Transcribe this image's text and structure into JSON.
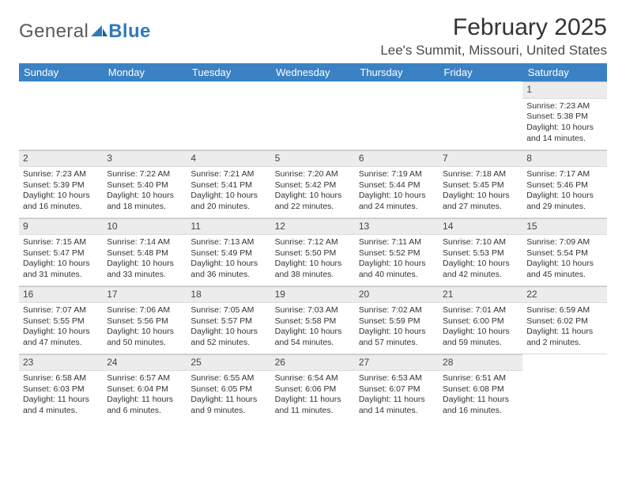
{
  "logo": {
    "word1": "General",
    "word2": "Blue"
  },
  "title": "February 2025",
  "location": "Lee's Summit, Missouri, United States",
  "dayHeaders": [
    "Sunday",
    "Monday",
    "Tuesday",
    "Wednesday",
    "Thursday",
    "Friday",
    "Saturday"
  ],
  "colors": {
    "headerBg": "#3b82c4",
    "headerText": "#ffffff",
    "dayNumBg": "#ececec",
    "gridBorder": "#d9d9d9",
    "logoBlue": "#2f79bd",
    "logoGray": "#5a5a5a",
    "pageBg": "#ffffff",
    "text": "#333333"
  },
  "layout": {
    "rows": 5,
    "cols": 7,
    "firstDayColumn": 6,
    "cellFontSize": 10.5,
    "headerFontSize": 13,
    "titleFontSize": 30,
    "locationFontSize": 17
  },
  "days": [
    {
      "n": 1,
      "sunrise": "7:23 AM",
      "sunset": "5:38 PM",
      "daylight": "10 hours and 14 minutes."
    },
    {
      "n": 2,
      "sunrise": "7:23 AM",
      "sunset": "5:39 PM",
      "daylight": "10 hours and 16 minutes."
    },
    {
      "n": 3,
      "sunrise": "7:22 AM",
      "sunset": "5:40 PM",
      "daylight": "10 hours and 18 minutes."
    },
    {
      "n": 4,
      "sunrise": "7:21 AM",
      "sunset": "5:41 PM",
      "daylight": "10 hours and 20 minutes."
    },
    {
      "n": 5,
      "sunrise": "7:20 AM",
      "sunset": "5:42 PM",
      "daylight": "10 hours and 22 minutes."
    },
    {
      "n": 6,
      "sunrise": "7:19 AM",
      "sunset": "5:44 PM",
      "daylight": "10 hours and 24 minutes."
    },
    {
      "n": 7,
      "sunrise": "7:18 AM",
      "sunset": "5:45 PM",
      "daylight": "10 hours and 27 minutes."
    },
    {
      "n": 8,
      "sunrise": "7:17 AM",
      "sunset": "5:46 PM",
      "daylight": "10 hours and 29 minutes."
    },
    {
      "n": 9,
      "sunrise": "7:15 AM",
      "sunset": "5:47 PM",
      "daylight": "10 hours and 31 minutes."
    },
    {
      "n": 10,
      "sunrise": "7:14 AM",
      "sunset": "5:48 PM",
      "daylight": "10 hours and 33 minutes."
    },
    {
      "n": 11,
      "sunrise": "7:13 AM",
      "sunset": "5:49 PM",
      "daylight": "10 hours and 36 minutes."
    },
    {
      "n": 12,
      "sunrise": "7:12 AM",
      "sunset": "5:50 PM",
      "daylight": "10 hours and 38 minutes."
    },
    {
      "n": 13,
      "sunrise": "7:11 AM",
      "sunset": "5:52 PM",
      "daylight": "10 hours and 40 minutes."
    },
    {
      "n": 14,
      "sunrise": "7:10 AM",
      "sunset": "5:53 PM",
      "daylight": "10 hours and 42 minutes."
    },
    {
      "n": 15,
      "sunrise": "7:09 AM",
      "sunset": "5:54 PM",
      "daylight": "10 hours and 45 minutes."
    },
    {
      "n": 16,
      "sunrise": "7:07 AM",
      "sunset": "5:55 PM",
      "daylight": "10 hours and 47 minutes."
    },
    {
      "n": 17,
      "sunrise": "7:06 AM",
      "sunset": "5:56 PM",
      "daylight": "10 hours and 50 minutes."
    },
    {
      "n": 18,
      "sunrise": "7:05 AM",
      "sunset": "5:57 PM",
      "daylight": "10 hours and 52 minutes."
    },
    {
      "n": 19,
      "sunrise": "7:03 AM",
      "sunset": "5:58 PM",
      "daylight": "10 hours and 54 minutes."
    },
    {
      "n": 20,
      "sunrise": "7:02 AM",
      "sunset": "5:59 PM",
      "daylight": "10 hours and 57 minutes."
    },
    {
      "n": 21,
      "sunrise": "7:01 AM",
      "sunset": "6:00 PM",
      "daylight": "10 hours and 59 minutes."
    },
    {
      "n": 22,
      "sunrise": "6:59 AM",
      "sunset": "6:02 PM",
      "daylight": "11 hours and 2 minutes."
    },
    {
      "n": 23,
      "sunrise": "6:58 AM",
      "sunset": "6:03 PM",
      "daylight": "11 hours and 4 minutes."
    },
    {
      "n": 24,
      "sunrise": "6:57 AM",
      "sunset": "6:04 PM",
      "daylight": "11 hours and 6 minutes."
    },
    {
      "n": 25,
      "sunrise": "6:55 AM",
      "sunset": "6:05 PM",
      "daylight": "11 hours and 9 minutes."
    },
    {
      "n": 26,
      "sunrise": "6:54 AM",
      "sunset": "6:06 PM",
      "daylight": "11 hours and 11 minutes."
    },
    {
      "n": 27,
      "sunrise": "6:53 AM",
      "sunset": "6:07 PM",
      "daylight": "11 hours and 14 minutes."
    },
    {
      "n": 28,
      "sunrise": "6:51 AM",
      "sunset": "6:08 PM",
      "daylight": "11 hours and 16 minutes."
    }
  ],
  "labels": {
    "sunrise": "Sunrise:",
    "sunset": "Sunset:",
    "daylight": "Daylight:"
  }
}
